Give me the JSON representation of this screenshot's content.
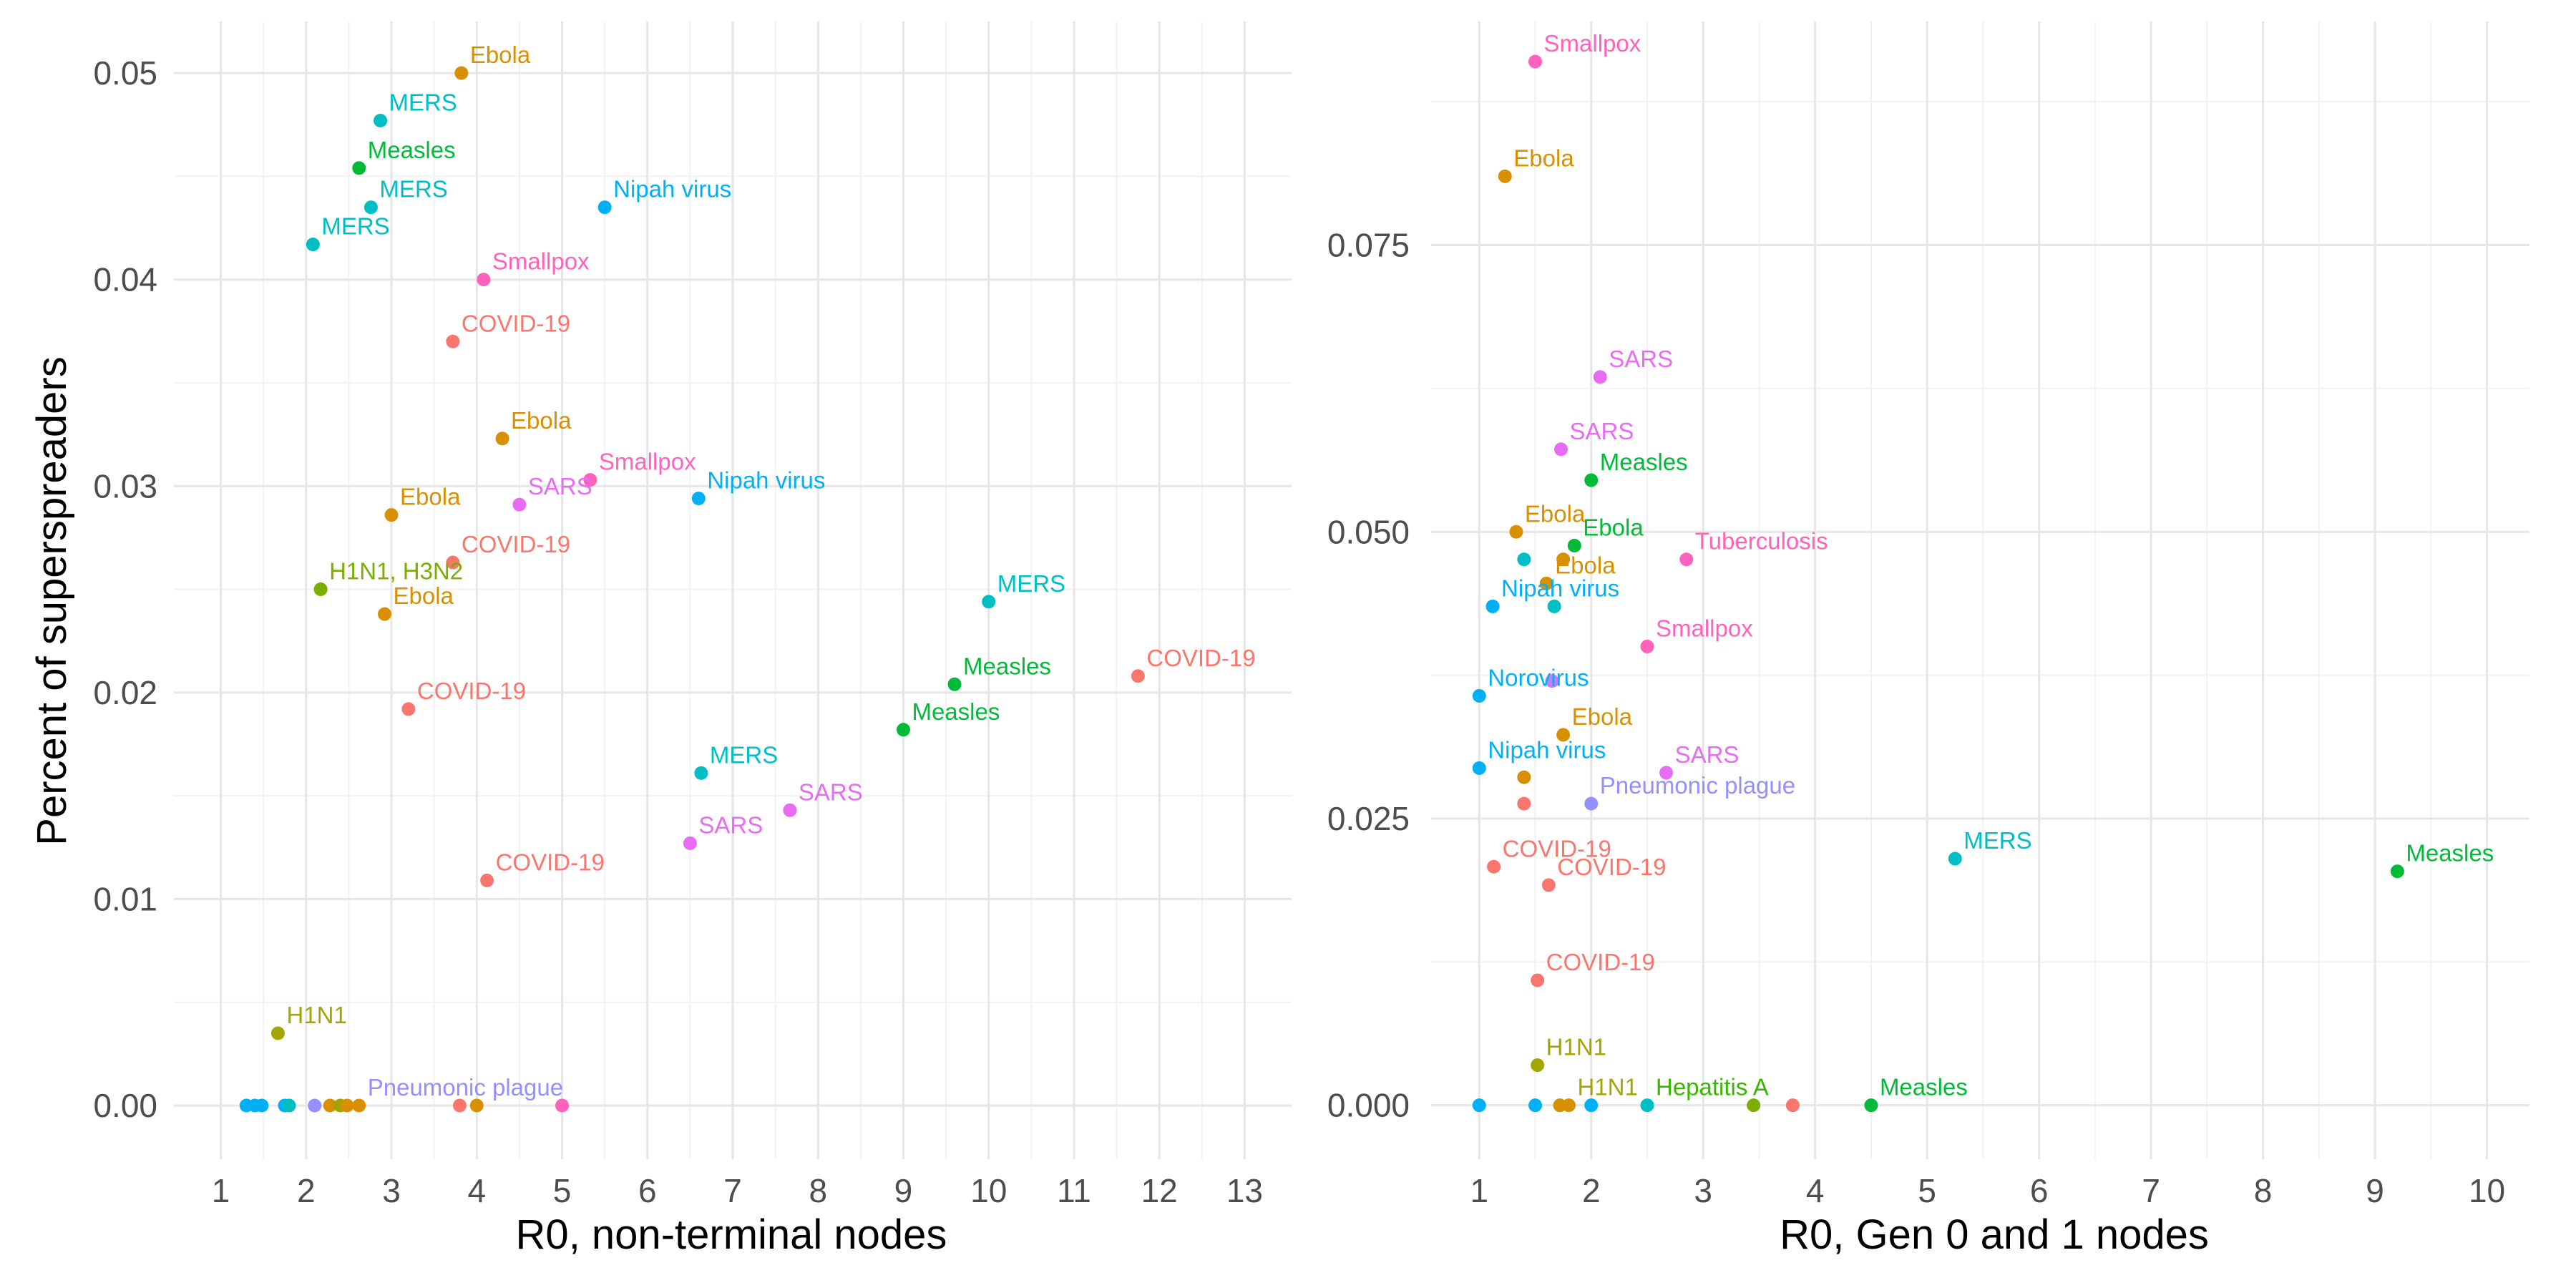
{
  "chart_data": [
    {
      "type": "scatter",
      "title": "",
      "xlabel": "R0, non-terminal nodes",
      "ylabel": "Percent of superspreaders",
      "xlim": [
        0.45,
        13.55
      ],
      "ylim": [
        -0.0026,
        0.0525
      ],
      "xticks": [
        1,
        2,
        3,
        4,
        5,
        6,
        7,
        8,
        9,
        10,
        11,
        12,
        13
      ],
      "yticks": [
        0,
        0.01,
        0.02,
        0.03,
        0.04,
        0.05
      ],
      "ytick_labels": [
        "0.00",
        "0.01",
        "0.02",
        "0.03",
        "0.04",
        "0.05"
      ],
      "grid": true,
      "legend": "none",
      "points": [
        {
          "x": 3.82,
          "y": 0.05,
          "label": "Ebola",
          "color": "#D89000"
        },
        {
          "x": 2.87,
          "y": 0.0477,
          "label": "MERS",
          "color": "#00BFC4"
        },
        {
          "x": 2.62,
          "y": 0.0454,
          "label": "Measles",
          "color": "#00BA38"
        },
        {
          "x": 2.76,
          "y": 0.0435,
          "label": "MERS",
          "color": "#00BFC4"
        },
        {
          "x": 5.5,
          "y": 0.0435,
          "label": "Nipah virus",
          "color": "#00B0F6"
        },
        {
          "x": 2.08,
          "y": 0.0417,
          "label": "MERS",
          "color": "#00BFC4"
        },
        {
          "x": 4.08,
          "y": 0.04,
          "label": "Smallpox",
          "color": "#FF62BC"
        },
        {
          "x": 3.72,
          "y": 0.037,
          "label": "COVID-19",
          "color": "#F8766D"
        },
        {
          "x": 4.3,
          "y": 0.0323,
          "label": "Ebola",
          "color": "#D89000"
        },
        {
          "x": 5.33,
          "y": 0.0303,
          "label": "Smallpox",
          "color": "#FF62BC"
        },
        {
          "x": 6.6,
          "y": 0.0294,
          "label": "Nipah virus",
          "color": "#00B0F6"
        },
        {
          "x": 4.5,
          "y": 0.0291,
          "label": "SARS",
          "color": "#E76BF3"
        },
        {
          "x": 3.0,
          "y": 0.0286,
          "label": "Ebola",
          "color": "#D89000"
        },
        {
          "x": 3.72,
          "y": 0.0263,
          "label": "COVID-19",
          "color": "#F8766D"
        },
        {
          "x": 2.17,
          "y": 0.025,
          "label": "H1N1, H3N2",
          "color": "#7CAE00"
        },
        {
          "x": 2.92,
          "y": 0.0238,
          "label": "Ebola",
          "color": "#D89000"
        },
        {
          "x": 10.0,
          "y": 0.0244,
          "label": "MERS",
          "color": "#00BFC4"
        },
        {
          "x": 11.75,
          "y": 0.0208,
          "label": "COVID-19",
          "color": "#F8766D"
        },
        {
          "x": 9.6,
          "y": 0.0204,
          "label": "Measles",
          "color": "#00BA38"
        },
        {
          "x": 3.2,
          "y": 0.0192,
          "label": "COVID-19",
          "color": "#F8766D"
        },
        {
          "x": 9.0,
          "y": 0.0182,
          "label": "Measles",
          "color": "#00BA38"
        },
        {
          "x": 6.63,
          "y": 0.0161,
          "label": "MERS",
          "color": "#00BFC4"
        },
        {
          "x": 7.67,
          "y": 0.0143,
          "label": "SARS",
          "color": "#E76BF3"
        },
        {
          "x": 6.5,
          "y": 0.0127,
          "label": "SARS",
          "color": "#E76BF3"
        },
        {
          "x": 4.12,
          "y": 0.0109,
          "label": "COVID-19",
          "color": "#F8766D"
        },
        {
          "x": 1.67,
          "y": 0.0035,
          "label": "H1N1",
          "color": "#A3A500"
        },
        {
          "x": 1.3,
          "y": 0.0,
          "label": "",
          "color": "#00B0F6"
        },
        {
          "x": 1.4,
          "y": 0.0,
          "label": "",
          "color": "#00B0F6"
        },
        {
          "x": 1.48,
          "y": 0.0,
          "label": "",
          "color": "#00B0F6"
        },
        {
          "x": 1.75,
          "y": 0.0,
          "label": "",
          "color": "#00B0F6"
        },
        {
          "x": 1.8,
          "y": 0.0,
          "label": "",
          "color": "#00BFC4"
        },
        {
          "x": 2.1,
          "y": 0.0,
          "label": "",
          "color": "#9590FF"
        },
        {
          "x": 2.28,
          "y": 0.0,
          "label": "",
          "color": "#D89000"
        },
        {
          "x": 2.4,
          "y": 0.0,
          "label": "",
          "color": "#A3A500"
        },
        {
          "x": 2.48,
          "y": 0.0,
          "label": "",
          "color": "#D89000"
        },
        {
          "x": 2.62,
          "y": 0.0,
          "label": "Pneumonic plague",
          "color": "#D89000"
        },
        {
          "x": 3.8,
          "y": 0.0,
          "label": "",
          "color": "#F8766D"
        },
        {
          "x": 4.0,
          "y": 0.0,
          "label": "",
          "color": "#D89000"
        },
        {
          "x": 5.0,
          "y": 0.0,
          "label": "",
          "color": "#FF62BC"
        }
      ],
      "label_colors": {
        "Pneumonic plague": "#9590FF"
      }
    },
    {
      "type": "scatter",
      "title": "",
      "xlabel": "R0, Gen 0 and 1 nodes",
      "ylabel": "",
      "xlim": [
        0.57,
        10.38
      ],
      "ylim": [
        -0.0047,
        0.0945
      ],
      "xticks": [
        1,
        2,
        3,
        4,
        5,
        6,
        7,
        8,
        9,
        10
      ],
      "yticks": [
        0,
        0.025,
        0.05,
        0.075
      ],
      "ytick_labels": [
        "0.000",
        "0.025",
        "0.050",
        "0.075"
      ],
      "grid": true,
      "legend": "none",
      "points": [
        {
          "x": 1.5,
          "y": 0.091,
          "label": "Smallpox",
          "color": "#FF62BC"
        },
        {
          "x": 1.23,
          "y": 0.081,
          "label": "Ebola",
          "color": "#D89000"
        },
        {
          "x": 2.08,
          "y": 0.0635,
          "label": "SARS",
          "color": "#E76BF3"
        },
        {
          "x": 1.73,
          "y": 0.0572,
          "label": "SARS",
          "color": "#E76BF3"
        },
        {
          "x": 2.0,
          "y": 0.0545,
          "label": "Measles",
          "color": "#00BA38"
        },
        {
          "x": 1.33,
          "y": 0.05,
          "label": "Ebola",
          "color": "#D89000"
        },
        {
          "x": 1.85,
          "y": 0.0488,
          "label": "Ebola",
          "color": "#00BA38"
        },
        {
          "x": 1.75,
          "y": 0.0476,
          "label": "",
          "color": "#D89000"
        },
        {
          "x": 1.4,
          "y": 0.0476,
          "label": "",
          "color": "#00BFC4"
        },
        {
          "x": 2.85,
          "y": 0.0476,
          "label": "Tuberculosis",
          "color": "#FF62BC"
        },
        {
          "x": 1.6,
          "y": 0.0455,
          "label": "Ebola",
          "color": "#D89000"
        },
        {
          "x": 1.12,
          "y": 0.0435,
          "label": "Nipah virus",
          "color": "#00B0F6"
        },
        {
          "x": 1.67,
          "y": 0.0435,
          "label": "",
          "color": "#00BFC4"
        },
        {
          "x": 2.5,
          "y": 0.04,
          "label": "Smallpox",
          "color": "#FF62BC"
        },
        {
          "x": 1.0,
          "y": 0.0357,
          "label": "Norovirus",
          "color": "#00B0F6"
        },
        {
          "x": 1.65,
          "y": 0.037,
          "label": "",
          "color": "#C77CFF"
        },
        {
          "x": 1.75,
          "y": 0.0323,
          "label": "Ebola",
          "color": "#D89000"
        },
        {
          "x": 1.0,
          "y": 0.0294,
          "label": "Nipah virus",
          "color": "#00B0F6"
        },
        {
          "x": 2.67,
          "y": 0.029,
          "label": "SARS",
          "color": "#E76BF3"
        },
        {
          "x": 1.4,
          "y": 0.0286,
          "label": "",
          "color": "#D89000"
        },
        {
          "x": 1.4,
          "y": 0.0263,
          "label": "",
          "color": "#F8766D"
        },
        {
          "x": 2.0,
          "y": 0.0263,
          "label": "Pneumonic plague",
          "color": "#9590FF"
        },
        {
          "x": 5.25,
          "y": 0.0215,
          "label": "MERS",
          "color": "#00BFC4"
        },
        {
          "x": 9.2,
          "y": 0.0204,
          "label": "Measles",
          "color": "#00BA38"
        },
        {
          "x": 1.13,
          "y": 0.0208,
          "label": "COVID-19",
          "color": "#F8766D"
        },
        {
          "x": 1.62,
          "y": 0.0192,
          "label": "COVID-19",
          "color": "#F8766D"
        },
        {
          "x": 1.52,
          "y": 0.0109,
          "label": "COVID-19",
          "color": "#F8766D"
        },
        {
          "x": 1.52,
          "y": 0.0035,
          "label": "H1N1",
          "color": "#A3A500"
        },
        {
          "x": 1.0,
          "y": 0.0,
          "label": "",
          "color": "#00B0F6"
        },
        {
          "x": 1.5,
          "y": 0.0,
          "label": "",
          "color": "#00B0F6"
        },
        {
          "x": 1.72,
          "y": 0.0,
          "label": "",
          "color": "#D89000"
        },
        {
          "x": 1.8,
          "y": 0.0,
          "label": "H1N1",
          "color": "#D89000"
        },
        {
          "x": 2.0,
          "y": 0.0,
          "label": "",
          "color": "#00B0F6"
        },
        {
          "x": 2.5,
          "y": 0.0,
          "label": "Hepatitis A",
          "color": "#00BFC4"
        },
        {
          "x": 3.45,
          "y": 0.0,
          "label": "",
          "color": "#7CAE00"
        },
        {
          "x": 3.8,
          "y": 0.0,
          "label": "",
          "color": "#F8766D"
        },
        {
          "x": 4.5,
          "y": 0.0,
          "label": "Measles",
          "color": "#00BA38"
        }
      ],
      "label_colors": {
        "H1N1": "#A3A500",
        "Hepatitis A": "#39B600",
        "Ebola": "#D89000"
      }
    }
  ],
  "colors": {
    "panel_background": "#ffffff",
    "grid_major": "#e6e6e6",
    "grid_minor": "#f2f2f2",
    "tick_text": "#4d4d4d"
  }
}
